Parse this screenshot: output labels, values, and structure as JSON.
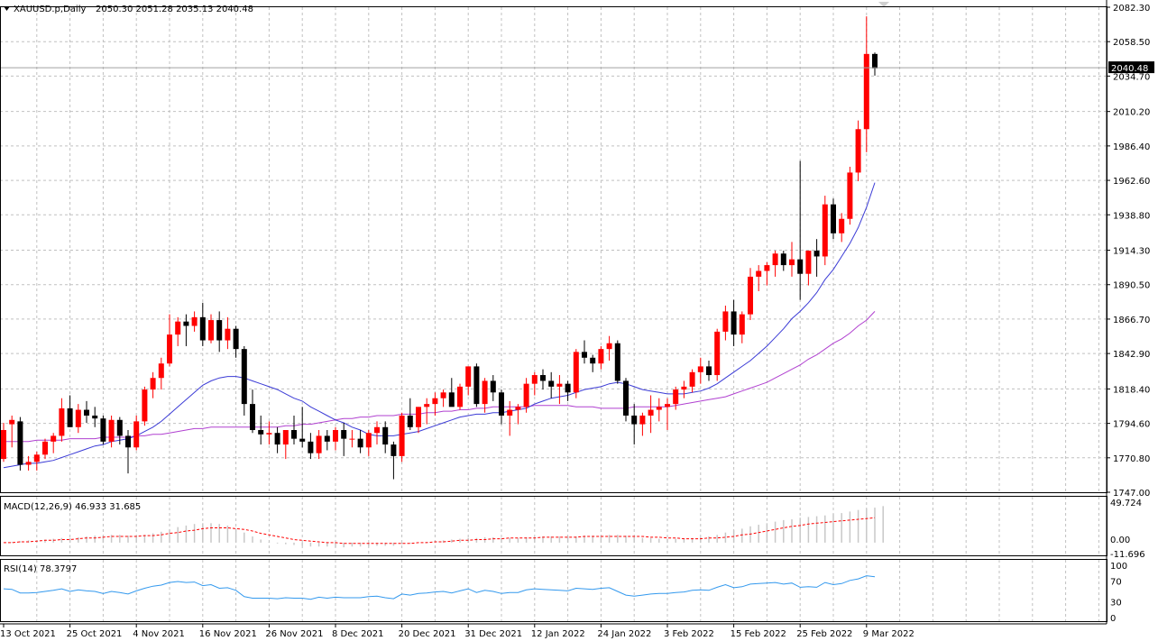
{
  "header": {
    "symbol": "XAUUSD.p,Daily",
    "ohlc": "2050.30 2051.28 2035.13 2040.48"
  },
  "colors": {
    "bull": "#ff0000",
    "bear": "#000000",
    "ma_fast": "#3b3bd6",
    "ma_slow": "#b040d0",
    "macd_hist": "#c8c8c8",
    "macd_signal": "#ff0000",
    "rsi": "#3399ee",
    "grid": "#c0c0c0"
  },
  "chart_data": [
    {
      "type": "candlestick",
      "ylim": [
        1747.0,
        2082.3
      ],
      "price_ticks": [
        "2082.30",
        "2058.50",
        "2034.70",
        "2010.20",
        "1986.40",
        "1962.60",
        "1938.80",
        "1914.30",
        "1890.50",
        "1866.70",
        "1842.90",
        "1818.40",
        "1794.60",
        "1770.80",
        "1747.00"
      ],
      "current_price": "2040.48",
      "date_labels": [
        "13 Oct 2021",
        "25 Oct 2021",
        "4 Nov 2021",
        "16 Nov 2021",
        "26 Nov 2021",
        "8 Dec 2021",
        "20 Dec 2021",
        "31 Dec 2021",
        "12 Jan 2022",
        "24 Jan 2022",
        "3 Feb 2022",
        "15 Feb 2022",
        "25 Feb 2022",
        "9 Mar 2022"
      ],
      "candles": [
        [
          1770,
          1795,
          1768,
          1790
        ],
        [
          1794,
          1800,
          1778,
          1797
        ],
        [
          1796,
          1799,
          1762,
          1766
        ],
        [
          1766,
          1772,
          1762,
          1768
        ],
        [
          1768,
          1775,
          1762,
          1773
        ],
        [
          1773,
          1784,
          1770,
          1782
        ],
        [
          1782,
          1788,
          1774,
          1786
        ],
        [
          1786,
          1812,
          1782,
          1805
        ],
        [
          1805,
          1814,
          1792,
          1792
        ],
        [
          1792,
          1808,
          1788,
          1804
        ],
        [
          1804,
          1810,
          1795,
          1800
        ],
        [
          1800,
          1806,
          1792,
          1798
        ],
        [
          1798,
          1800,
          1780,
          1782
        ],
        [
          1782,
          1800,
          1778,
          1797
        ],
        [
          1797,
          1799,
          1780,
          1786
        ],
        [
          1786,
          1790,
          1760,
          1778
        ],
        [
          1778,
          1800,
          1776,
          1796
        ],
        [
          1796,
          1820,
          1793,
          1818
        ],
        [
          1818,
          1830,
          1812,
          1826
        ],
        [
          1826,
          1840,
          1818,
          1836
        ],
        [
          1836,
          1870,
          1834,
          1856
        ],
        [
          1856,
          1868,
          1848,
          1865
        ],
        [
          1865,
          1870,
          1848,
          1862
        ],
        [
          1862,
          1872,
          1858,
          1868
        ],
        [
          1868,
          1878,
          1848,
          1852
        ],
        [
          1852,
          1870,
          1850,
          1866
        ],
        [
          1866,
          1872,
          1844,
          1852
        ],
        [
          1852,
          1868,
          1846,
          1860
        ],
        [
          1860,
          1862,
          1840,
          1846
        ],
        [
          1846,
          1848,
          1800,
          1808
        ],
        [
          1808,
          1818,
          1788,
          1790
        ],
        [
          1790,
          1800,
          1780,
          1787
        ],
        [
          1787,
          1796,
          1780,
          1788
        ],
        [
          1788,
          1792,
          1774,
          1780
        ],
        [
          1780,
          1790,
          1770,
          1790
        ],
        [
          1790,
          1800,
          1780,
          1784
        ],
        [
          1784,
          1806,
          1778,
          1782
        ],
        [
          1782,
          1788,
          1770,
          1774
        ],
        [
          1774,
          1790,
          1770,
          1786
        ],
        [
          1786,
          1790,
          1776,
          1782
        ],
        [
          1782,
          1792,
          1776,
          1790
        ],
        [
          1790,
          1795,
          1772,
          1784
        ],
        [
          1784,
          1790,
          1778,
          1784
        ],
        [
          1784,
          1790,
          1774,
          1778
        ],
        [
          1778,
          1790,
          1772,
          1788
        ],
        [
          1788,
          1796,
          1780,
          1792
        ],
        [
          1792,
          1796,
          1774,
          1780
        ],
        [
          1780,
          1782,
          1756,
          1772
        ],
        [
          1772,
          1802,
          1768,
          1800
        ],
        [
          1800,
          1812,
          1790,
          1792
        ],
        [
          1792,
          1806,
          1788,
          1806
        ],
        [
          1806,
          1812,
          1794,
          1808
        ],
        [
          1808,
          1816,
          1800,
          1812
        ],
        [
          1812,
          1818,
          1806,
          1816
        ],
        [
          1816,
          1826,
          1808,
          1806
        ],
        [
          1806,
          1822,
          1804,
          1820
        ],
        [
          1820,
          1834,
          1814,
          1834
        ],
        [
          1834,
          1836,
          1806,
          1808
        ],
        [
          1808,
          1826,
          1802,
          1824
        ],
        [
          1824,
          1828,
          1810,
          1816
        ],
        [
          1816,
          1818,
          1794,
          1800
        ],
        [
          1800,
          1810,
          1786,
          1804
        ],
        [
          1804,
          1808,
          1794,
          1806
        ],
        [
          1806,
          1826,
          1802,
          1822
        ],
        [
          1822,
          1830,
          1814,
          1828
        ],
        [
          1828,
          1832,
          1818,
          1824
        ],
        [
          1824,
          1830,
          1812,
          1820
        ],
        [
          1820,
          1828,
          1808,
          1822
        ],
        [
          1822,
          1824,
          1810,
          1816
        ],
        [
          1816,
          1846,
          1812,
          1844
        ],
        [
          1844,
          1852,
          1836,
          1840
        ],
        [
          1840,
          1842,
          1830,
          1836
        ],
        [
          1836,
          1848,
          1832,
          1846
        ],
        [
          1846,
          1855,
          1838,
          1850
        ],
        [
          1850,
          1852,
          1822,
          1824
        ],
        [
          1824,
          1826,
          1796,
          1800
        ],
        [
          1800,
          1808,
          1780,
          1794
        ],
        [
          1794,
          1802,
          1786,
          1800
        ],
        [
          1800,
          1814,
          1788,
          1804
        ],
        [
          1804,
          1812,
          1796,
          1806
        ],
        [
          1806,
          1812,
          1790,
          1808
        ],
        [
          1808,
          1820,
          1804,
          1818
        ],
        [
          1818,
          1824,
          1812,
          1820
        ],
        [
          1820,
          1832,
          1816,
          1830
        ],
        [
          1830,
          1840,
          1822,
          1834
        ],
        [
          1834,
          1838,
          1824,
          1828
        ],
        [
          1828,
          1860,
          1824,
          1858
        ],
        [
          1858,
          1876,
          1852,
          1872
        ],
        [
          1872,
          1880,
          1848,
          1856
        ],
        [
          1856,
          1872,
          1850,
          1870
        ],
        [
          1870,
          1902,
          1866,
          1896
        ],
        [
          1896,
          1904,
          1886,
          1900
        ],
        [
          1900,
          1906,
          1890,
          1904
        ],
        [
          1904,
          1914,
          1896,
          1912
        ],
        [
          1912,
          1914,
          1900,
          1904
        ],
        [
          1904,
          1920,
          1896,
          1908
        ],
        [
          1908,
          1976,
          1880,
          1898
        ],
        [
          1898,
          1914,
          1890,
          1914
        ],
        [
          1914,
          1922,
          1896,
          1910
        ],
        [
          1910,
          1952,
          1904,
          1946
        ],
        [
          1946,
          1950,
          1922,
          1926
        ],
        [
          1926,
          1940,
          1920,
          1936
        ],
        [
          1936,
          1972,
          1932,
          1968
        ],
        [
          1968,
          2004,
          1962,
          1998
        ],
        [
          1998,
          2076,
          1982,
          2050
        ],
        [
          2050,
          2051,
          2035,
          2040
        ]
      ],
      "ma_fast": [
        1764,
        1765,
        1766,
        1767,
        1767,
        1768,
        1769,
        1771,
        1773,
        1775,
        1777,
        1779,
        1780,
        1782,
        1783,
        1784,
        1786,
        1789,
        1792,
        1796,
        1801,
        1806,
        1811,
        1816,
        1821,
        1824,
        1826,
        1827,
        1827,
        1826,
        1824,
        1822,
        1820,
        1818,
        1815,
        1812,
        1810,
        1806,
        1803,
        1800,
        1797,
        1795,
        1792,
        1790,
        1787,
        1786,
        1786,
        1786,
        1787,
        1788,
        1789,
        1791,
        1793,
        1795,
        1797,
        1799,
        1800,
        1801,
        1801,
        1802,
        1802,
        1803,
        1804,
        1805,
        1808,
        1810,
        1812,
        1813,
        1814,
        1816,
        1818,
        1819,
        1820,
        1822,
        1823,
        1822,
        1820,
        1818,
        1817,
        1816,
        1815,
        1815,
        1815,
        1816,
        1817,
        1819,
        1822,
        1826,
        1830,
        1834,
        1838,
        1843,
        1848,
        1854,
        1860,
        1867,
        1872,
        1878,
        1885,
        1894,
        1901,
        1910,
        1919,
        1930,
        1944,
        1961
      ],
      "ma_slow": [
        1782,
        1782,
        1782,
        1782,
        1783,
        1783,
        1783,
        1783,
        1784,
        1784,
        1784,
        1784,
        1785,
        1785,
        1785,
        1785,
        1786,
        1786,
        1787,
        1787,
        1788,
        1789,
        1790,
        1791,
        1791,
        1792,
        1792,
        1792,
        1792,
        1792,
        1792,
        1792,
        1792,
        1792,
        1793,
        1793,
        1794,
        1794,
        1795,
        1796,
        1797,
        1798,
        1798,
        1799,
        1799,
        1800,
        1800,
        1800,
        1801,
        1801,
        1801,
        1802,
        1802,
        1803,
        1803,
        1804,
        1804,
        1805,
        1805,
        1806,
        1806,
        1806,
        1806,
        1806,
        1807,
        1807,
        1807,
        1807,
        1807,
        1806,
        1806,
        1806,
        1805,
        1805,
        1805,
        1805,
        1806,
        1806,
        1806,
        1806,
        1806,
        1807,
        1808,
        1809,
        1810,
        1811,
        1812,
        1813,
        1815,
        1817,
        1819,
        1821,
        1823,
        1826,
        1829,
        1832,
        1835,
        1839,
        1842,
        1846,
        1850,
        1853,
        1857,
        1862,
        1866,
        1872
      ]
    },
    {
      "type": "macd",
      "label": "MACD(12,26,9) 46.933 31.685",
      "ylim": [
        -11.696,
        49.724
      ],
      "ticks": [
        "49.724",
        "0.00",
        "-11.696"
      ],
      "hist": [
        0,
        1,
        2,
        3,
        3,
        4,
        5,
        6,
        6,
        7,
        8,
        9,
        9,
        10,
        10,
        9,
        9,
        10,
        12,
        14,
        17,
        20,
        22,
        24,
        25,
        25,
        24,
        22,
        18,
        13,
        8,
        4,
        1,
        -1,
        -2,
        -3,
        -4,
        -5,
        -5,
        -5,
        -6,
        -6,
        -5,
        -5,
        -5,
        -4,
        -4,
        -4,
        -2,
        -1,
        0,
        1,
        2,
        3,
        4,
        5,
        6,
        6,
        7,
        7,
        6,
        6,
        6,
        7,
        7,
        8,
        8,
        8,
        8,
        8,
        9,
        9,
        9,
        10,
        10,
        9,
        7,
        6,
        6,
        5,
        5,
        5,
        5,
        6,
        7,
        8,
        10,
        13,
        16,
        18,
        21,
        23,
        25,
        27,
        29,
        30,
        32,
        33,
        34,
        35,
        37,
        38,
        40,
        42,
        44,
        45,
        47
      ],
      "signal": [
        0,
        0,
        1,
        1,
        2,
        3,
        3,
        4,
        4,
        5,
        6,
        6,
        7,
        8,
        8,
        8,
        8,
        9,
        9,
        10,
        12,
        13,
        15,
        16,
        18,
        19,
        19,
        19,
        18,
        17,
        15,
        12,
        10,
        8,
        6,
        4,
        3,
        2,
        1,
        0,
        0,
        -1,
        -1,
        -1,
        -1,
        -1,
        -1,
        -1,
        -1,
        -1,
        0,
        0,
        1,
        1,
        2,
        3,
        3,
        4,
        4,
        5,
        5,
        6,
        6,
        6,
        6,
        7,
        7,
        7,
        7,
        7,
        8,
        8,
        8,
        8,
        8,
        8,
        8,
        8,
        7,
        7,
        6,
        6,
        5,
        5,
        5,
        6,
        6,
        7,
        8,
        10,
        11,
        13,
        15,
        17,
        19,
        21,
        22,
        24,
        25,
        26,
        27,
        28,
        29,
        30,
        31,
        32
      ]
    },
    {
      "type": "line",
      "label": "RSI(14) 78.3797",
      "ylim": [
        0,
        100
      ],
      "ticks": [
        "100",
        "70",
        "30",
        "0"
      ],
      "values": [
        55,
        54,
        47,
        47,
        48,
        50,
        52,
        55,
        50,
        53,
        51,
        50,
        46,
        50,
        48,
        45,
        51,
        56,
        60,
        62,
        67,
        69,
        67,
        68,
        61,
        63,
        56,
        57,
        52,
        40,
        37,
        37,
        37,
        36,
        38,
        37,
        37,
        35,
        39,
        37,
        39,
        38,
        38,
        38,
        40,
        41,
        38,
        36,
        45,
        43,
        46,
        47,
        49,
        50,
        47,
        51,
        55,
        48,
        52,
        50,
        46,
        48,
        48,
        53,
        55,
        54,
        53,
        52,
        51,
        56,
        55,
        54,
        56,
        57,
        50,
        43,
        41,
        43,
        45,
        46,
        46,
        48,
        49,
        52,
        53,
        52,
        58,
        63,
        57,
        59,
        64,
        65,
        66,
        67,
        64,
        66,
        58,
        59,
        58,
        67,
        63,
        65,
        71,
        74,
        80,
        78
      ]
    }
  ]
}
